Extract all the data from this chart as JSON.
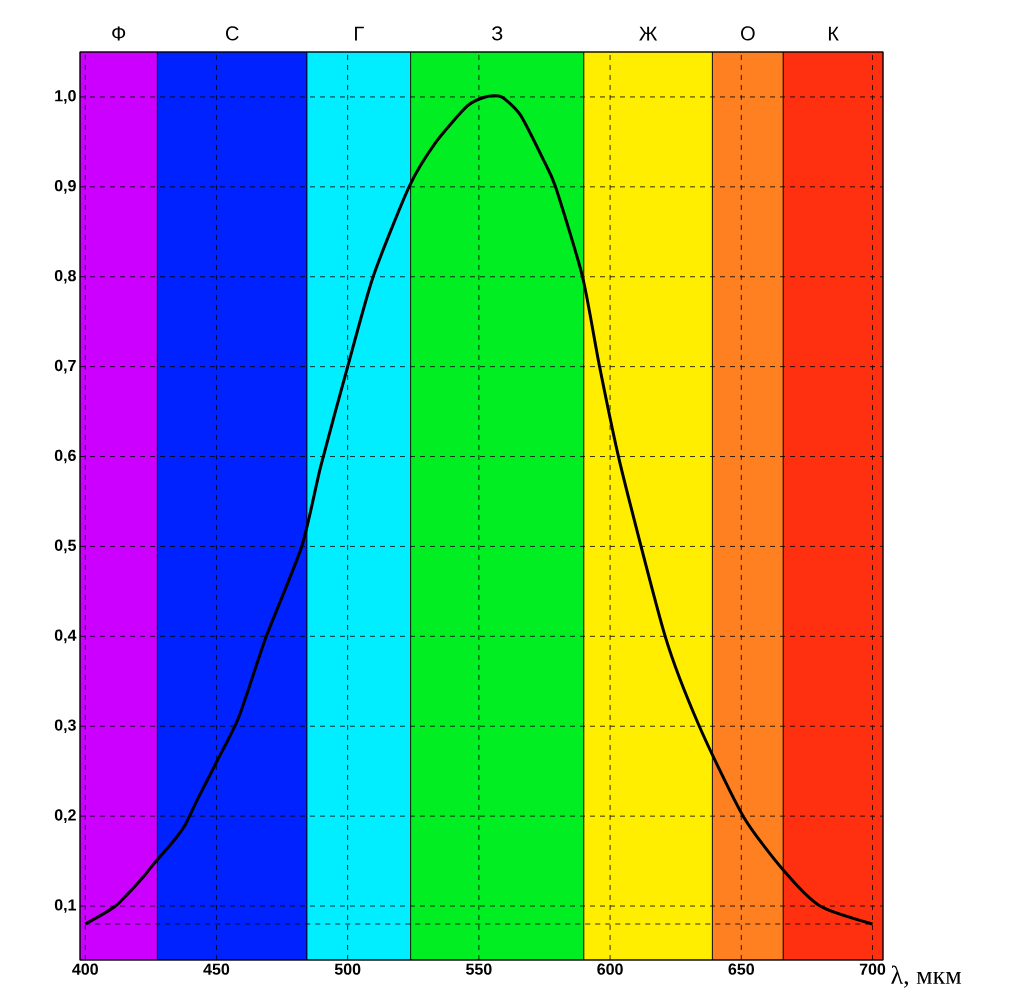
{
  "chart_data": {
    "type": "line",
    "xlabel": "λ, мкм",
    "xlim": [
      398,
      704
    ],
    "ylim": [
      0.04,
      1.05
    ],
    "xticks": [
      400,
      450,
      500,
      550,
      600,
      650,
      700
    ],
    "yticks": [
      {
        "value": 0.1,
        "label": "0,1"
      },
      {
        "value": 0.2,
        "label": "0,2"
      },
      {
        "value": 0.3,
        "label": "0,3"
      },
      {
        "value": 0.4,
        "label": "0,4"
      },
      {
        "value": 0.5,
        "label": "0,5"
      },
      {
        "value": 0.6,
        "label": "0,6"
      },
      {
        "value": 0.7,
        "label": "0,7"
      },
      {
        "value": 0.8,
        "label": "0,8"
      },
      {
        "value": 0.9,
        "label": "0,9"
      },
      {
        "value": 1.0,
        "label": "1,0"
      }
    ],
    "grid": true,
    "marker": "none",
    "line_style": "solid",
    "bands": [
      {
        "axis": "x",
        "from": 398,
        "to": 427.5,
        "label": "Ф",
        "color": "#cc00ff"
      },
      {
        "axis": "x",
        "from": 427.5,
        "to": 484.5,
        "label": "С",
        "color": "#0022ff"
      },
      {
        "axis": "x",
        "from": 484.5,
        "to": 524,
        "label": "Г",
        "color": "#00eeff"
      },
      {
        "axis": "x",
        "from": 524,
        "to": 590,
        "label": "З",
        "color": "#00ee22"
      },
      {
        "axis": "x",
        "from": 590,
        "to": 639,
        "label": "Ж",
        "color": "#ffee00"
      },
      {
        "axis": "x",
        "from": 639,
        "to": 666,
        "label": "О",
        "color": "#ff8020"
      },
      {
        "axis": "x",
        "from": 666,
        "to": 704,
        "label": "К",
        "color": "#ff3010"
      }
    ],
    "ref_lines": [
      {
        "axis": "y",
        "value": 0.08,
        "line_style": "dashed"
      }
    ],
    "series": [
      {
        "color": "#000000",
        "x": [
          400,
          411.5,
          421.4,
          427,
          433,
          438,
          443,
          450,
          458.5,
          469,
          482.5,
          489.8,
          500,
          509.7,
          523.4,
          533.7,
          545.6,
          552.5,
          558.6,
          565.8,
          574.6,
          579.2,
          589.5,
          596,
          604,
          621,
          634,
          650.7,
          666,
          680,
          700
        ],
        "values": [
          0.08,
          0.1,
          0.13,
          0.15,
          0.17,
          0.19,
          0.22,
          0.26,
          0.31,
          0.4,
          0.5,
          0.59,
          0.7,
          0.8,
          0.9,
          0.95,
          0.99,
          1.0,
          1.0,
          0.98,
          0.93,
          0.9,
          0.8,
          0.7,
          0.59,
          0.4,
          0.3,
          0.2,
          0.14,
          0.1,
          0.08
        ]
      }
    ]
  }
}
